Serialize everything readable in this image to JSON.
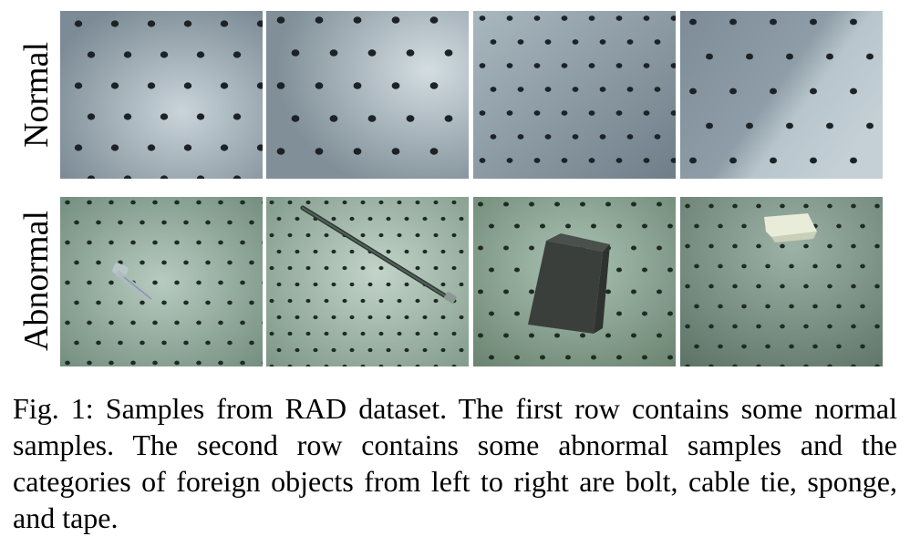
{
  "figure": {
    "row_labels": {
      "normal": "Normal",
      "abnormal": "Abnormal"
    },
    "caption": "Fig. 1: Samples from RAD dataset. The first row contains some normal samples. The second row contains some abnormal samples and the categories of foreign objects from left to right are bolt, cable tie, sponge, and tape.",
    "normal_samples": [
      {
        "object": "none",
        "tone": "#9aaab4"
      },
      {
        "object": "none",
        "tone": "#a4b2ba"
      },
      {
        "object": "none",
        "tone": "#8f9ea8"
      },
      {
        "object": "none",
        "tone": "#94a3ad"
      }
    ],
    "abnormal_samples": [
      {
        "object": "bolt",
        "tone": "#8fa89a"
      },
      {
        "object": "cable tie",
        "tone": "#9cb3a6"
      },
      {
        "object": "sponge",
        "tone": "#8aa394"
      },
      {
        "object": "tape",
        "tone": "#889c92"
      }
    ]
  }
}
